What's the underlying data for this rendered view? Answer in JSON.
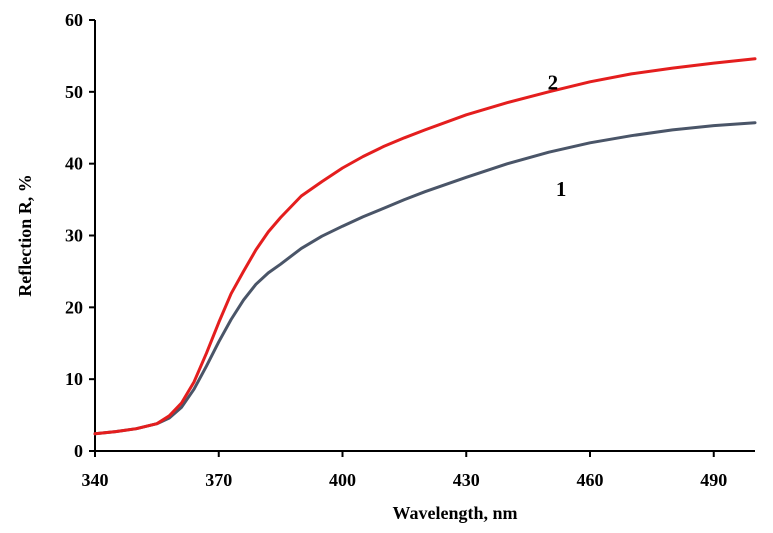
{
  "chart_data": {
    "type": "line",
    "title": "",
    "xlabel": "Wavelength, nm",
    "ylabel": "Reflection R, %",
    "xlim": [
      340,
      500
    ],
    "ylim": [
      0,
      60
    ],
    "x_ticks": [
      340,
      370,
      400,
      430,
      460,
      490
    ],
    "y_ticks": [
      0,
      10,
      20,
      30,
      40,
      50,
      60
    ],
    "grid": false,
    "legend": "none (curves labeled inline)",
    "colors": {
      "axis": "#000000",
      "series_1": "#4a5568",
      "series_2": "#e41e1e"
    },
    "series": [
      {
        "name": "1",
        "color": "#4a5568",
        "label_at": [
          453,
          36.5
        ],
        "x": [
          340,
          345,
          350,
          355,
          358,
          361,
          364,
          367,
          370,
          373,
          376,
          379,
          382,
          385,
          390,
          395,
          400,
          405,
          410,
          415,
          420,
          430,
          440,
          450,
          460,
          470,
          480,
          490,
          500
        ],
        "y": [
          2.4,
          2.7,
          3.1,
          3.8,
          4.6,
          6.1,
          8.6,
          11.8,
          15.2,
          18.3,
          21.0,
          23.2,
          24.8,
          26.0,
          28.2,
          29.9,
          31.3,
          32.6,
          33.8,
          35.0,
          36.1,
          38.1,
          40.0,
          41.6,
          42.9,
          43.9,
          44.7,
          45.3,
          45.7
        ]
      },
      {
        "name": "2",
        "color": "#e41e1e",
        "label_at": [
          451,
          51.3
        ],
        "x": [
          340,
          345,
          350,
          355,
          358,
          361,
          364,
          367,
          370,
          373,
          376,
          379,
          382,
          385,
          390,
          395,
          400,
          405,
          410,
          415,
          420,
          430,
          440,
          450,
          460,
          470,
          480,
          490,
          500
        ],
        "y": [
          2.4,
          2.7,
          3.1,
          3.8,
          4.9,
          6.7,
          9.6,
          13.6,
          17.9,
          21.9,
          25.0,
          28.0,
          30.5,
          32.5,
          35.5,
          37.5,
          39.4,
          41.0,
          42.4,
          43.6,
          44.7,
          46.8,
          48.5,
          50.0,
          51.4,
          52.5,
          53.3,
          54.0,
          54.6
        ]
      }
    ]
  }
}
